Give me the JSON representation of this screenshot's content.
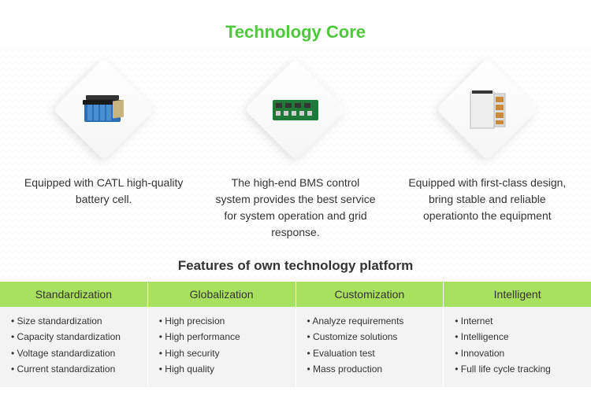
{
  "colors": {
    "accent": "#4fc93c",
    "header_bg": "#a8e05f",
    "text": "#333333",
    "cell_bg": "#f3f3f3"
  },
  "title": "Technology Core",
  "cores": [
    {
      "desc": "Equipped with CATL high-quality battery cell."
    },
    {
      "desc": "The high-end BMS control system provides the best service for system operation and grid response."
    },
    {
      "desc": "Equipped with first-class design, bring stable and reliable operationto the equipment"
    }
  ],
  "features_title": "Features of own technology platform",
  "features": [
    {
      "header": "Standardization",
      "items": [
        "Size standardization",
        "Capacity standardization",
        "Voltage standardization",
        "Current standardization"
      ]
    },
    {
      "header": "Globalization",
      "items": [
        "High precision",
        "High performance",
        "High security",
        "High quality"
      ]
    },
    {
      "header": "Customization",
      "items": [
        "Analyze requirements",
        "Customize  solutions",
        "Evaluation test",
        "Mass production"
      ]
    },
    {
      "header": "Intelligent",
      "items": [
        "Internet",
        "Intelligence",
        "Innovation",
        "Full life cycle tracking"
      ]
    }
  ]
}
